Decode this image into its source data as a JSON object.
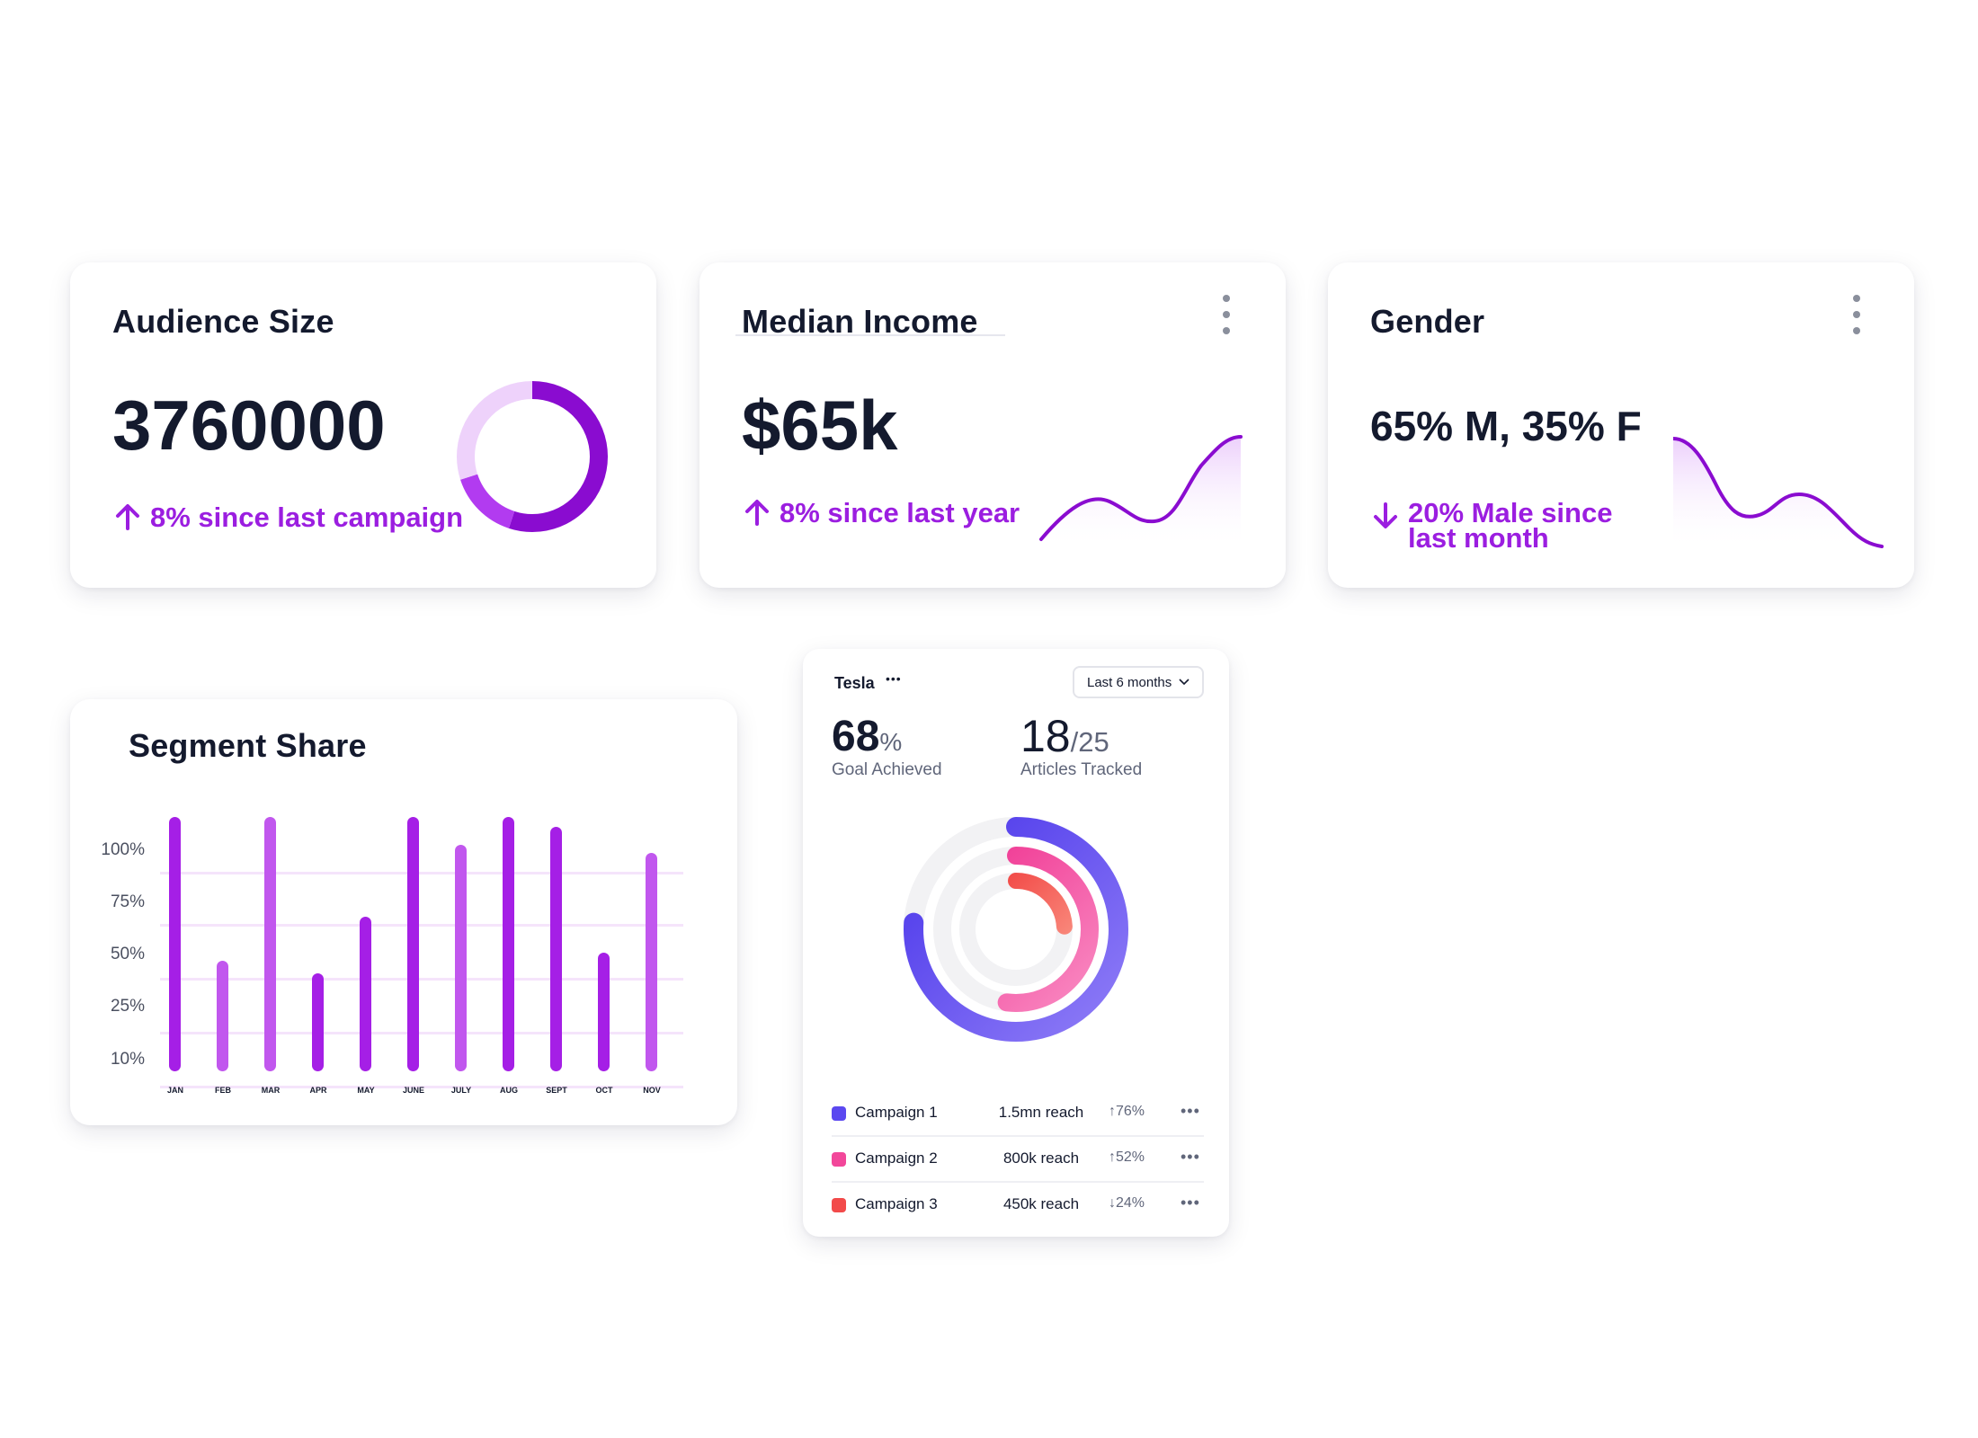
{
  "colors": {
    "accent": "#9b1ee0",
    "bar_primary": "#a51fe6",
    "bar_light": "#c157ee",
    "donut_dark": "#8a0cd0",
    "donut_mid": "#b23bf0",
    "donut_light": "#eed2fb",
    "ring_blue": "#5b48f0",
    "ring_pink": "#f2479a",
    "ring_red": "#f24a4a"
  },
  "audience": {
    "title": "Audience Size",
    "value": "3760000",
    "trend": "8% since last campaign",
    "trend_direction": "up",
    "donut_segments": [
      0.55,
      0.15,
      0.3
    ]
  },
  "income": {
    "title": "Median Income",
    "value": "$65k",
    "trend": "8% since last  year",
    "trend_direction": "up",
    "menu_icon": "kebab-icon"
  },
  "gender": {
    "title": "Gender",
    "value": "65% M, 35% F",
    "trend_line1": "20% Male since",
    "trend_line2": "last month",
    "trend_direction": "down",
    "menu_icon": "kebab-icon"
  },
  "segment": {
    "title": "Segment Share"
  },
  "chart_data": {
    "type": "bar",
    "title": "Segment Share",
    "categories": [
      "JAN",
      "FEB",
      "MAR",
      "APR",
      "MAY",
      "JUNE",
      "JULY",
      "AUG",
      "SEPT",
      "OCT",
      "NOV"
    ],
    "y_tick_labels": [
      "100%",
      "75%",
      "50%",
      "25%",
      "10%"
    ],
    "values": [
      0.99,
      0.43,
      0.99,
      0.38,
      0.6,
      0.99,
      0.88,
      0.99,
      0.95,
      0.46,
      0.85
    ],
    "value_unit": "fraction of bar track",
    "bar_shades": [
      "primary",
      "light",
      "light",
      "primary",
      "primary",
      "primary",
      "light",
      "primary",
      "primary",
      "primary",
      "light"
    ],
    "grid": true
  },
  "tesla": {
    "title": "Tesla",
    "dropdown": "Last 6 months",
    "goal_value": "68",
    "goal_unit": "%",
    "goal_label": "Goal Achieved",
    "articles_value": "18",
    "articles_total": "/25",
    "articles_label": "Articles Tracked",
    "rings": [
      {
        "name": "Campaign 1",
        "fraction": 0.76
      },
      {
        "name": "Campaign 2",
        "fraction": 0.52
      },
      {
        "name": "Campaign 3",
        "fraction": 0.24
      }
    ],
    "campaigns": [
      {
        "name": "Campaign 1",
        "reach": "1.5mn reach",
        "pct": "76%",
        "dir": "↑",
        "more": "•••"
      },
      {
        "name": "Campaign 2",
        "reach": "800k reach",
        "pct": "52%",
        "dir": "↑",
        "more": "•••"
      },
      {
        "name": "Campaign 3",
        "reach": "450k reach",
        "pct": "24%",
        "dir": "↓",
        "more": "•••"
      }
    ]
  }
}
